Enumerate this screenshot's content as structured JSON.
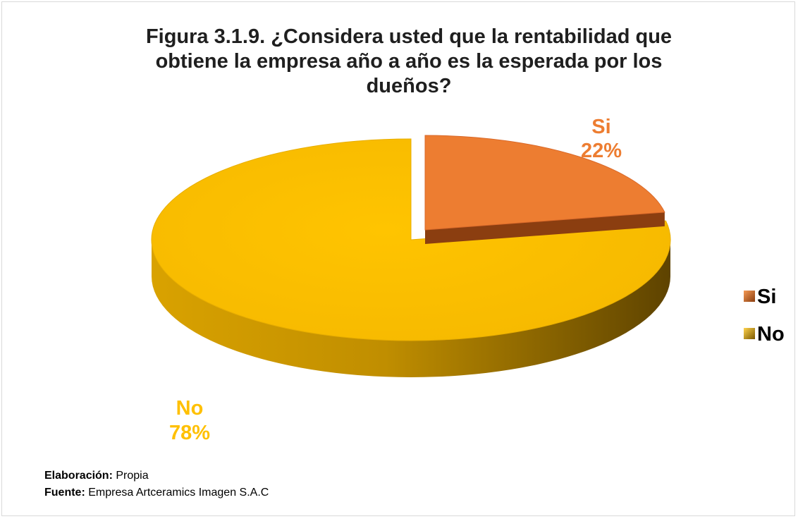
{
  "chart_data": {
    "type": "pie",
    "title_lines": [
      "Figura 3.1.9. ¿Considera usted que la rentabilidad que",
      "obtiene la empresa año a año es la esperada por los",
      "dueños?"
    ],
    "slices": [
      {
        "name": "Si",
        "value": 22,
        "label": "22%",
        "color": "#ED7D31",
        "side_color": "#8B3E10"
      },
      {
        "name": "No",
        "value": 78,
        "label": "78%",
        "color": "#FFC000",
        "side_color": "#7A5800"
      }
    ],
    "legend": {
      "position": "right",
      "items": [
        "Si",
        "No"
      ]
    },
    "style": "3d-exploded"
  },
  "footer": {
    "elaboracion_label": "Elaboración:",
    "elaboracion_value": "Propia",
    "fuente_label": "Fuente:",
    "fuente_value": "Empresa Artceramics Imagen S.A.C"
  }
}
